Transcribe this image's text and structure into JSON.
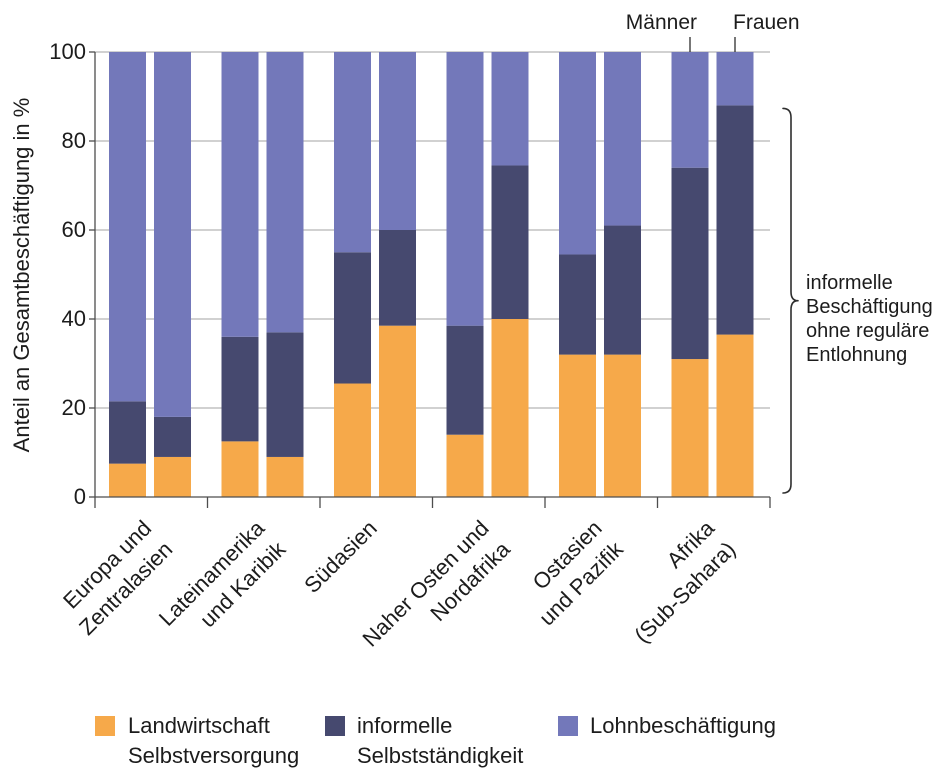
{
  "chart_data": {
    "type": "bar",
    "stacked": true,
    "ylabel": "Anteil an Gesamtbeschäftigung in %",
    "ylim": [
      0,
      100
    ],
    "yticks": [
      0,
      20,
      40,
      60,
      80,
      100
    ],
    "grid": true,
    "legend": "bottom",
    "categories": [
      "Europa und\nZentralasien",
      "Lateinamerika\nund Karibik",
      "Südasien",
      "Naher Osten und\nNordafrika",
      "Ostasien\nund Pazifik",
      "Afrika\n(Sub-Sahara)"
    ],
    "subgroups": [
      "Männer",
      "Frauen"
    ],
    "series": [
      {
        "name": "Landwirtschaft\nSelbstversorgung",
        "color": "#F6A94A",
        "values": [
          [
            7.5,
            9
          ],
          [
            12.5,
            9
          ],
          [
            25.5,
            38.5
          ],
          [
            14,
            40
          ],
          [
            32,
            32
          ],
          [
            31,
            36.5
          ]
        ]
      },
      {
        "name": "informelle\nSelbstständigkeit",
        "color": "#46496F",
        "values": [
          [
            14,
            9
          ],
          [
            23.5,
            28
          ],
          [
            29.5,
            21.5
          ],
          [
            24.5,
            34.5
          ],
          [
            22.5,
            29
          ],
          [
            43,
            51.5
          ]
        ]
      },
      {
        "name": "Lohnbeschäftigung",
        "color": "#7378BA",
        "values": [
          [
            78.5,
            82
          ],
          [
            64,
            63
          ],
          [
            45,
            40
          ],
          [
            61.5,
            25.5
          ],
          [
            45.5,
            39
          ],
          [
            26,
            12
          ]
        ]
      }
    ],
    "annotation": "informelle\nBeschäftigung\nohne reguläre\nEntlohnung"
  }
}
